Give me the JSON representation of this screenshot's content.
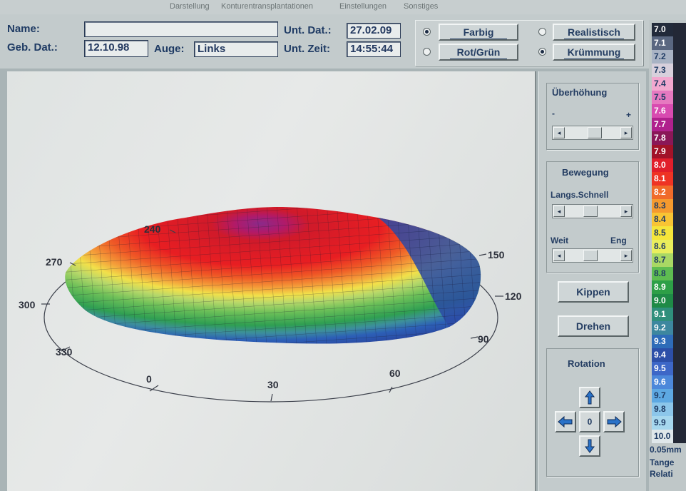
{
  "menu": {
    "items": [
      "Darstellung",
      "Konturentransplantationen",
      "Einstellungen",
      "Sonstiges"
    ]
  },
  "patient": {
    "name_label": "Name:",
    "name_value": "",
    "birth_label": "Geb. Dat.:",
    "birth_value": "12.10.98",
    "eye_label": "Auge:",
    "eye_value": "Links",
    "exam_date_label": "Unt. Dat.:",
    "exam_date_value": "27.02.09",
    "exam_time_label": "Unt. Zeit:",
    "exam_time_value": "14:55:44"
  },
  "options": {
    "farbig": "Farbig",
    "rotgruen": "Rot/Grün",
    "realistisch": "Realistisch",
    "kruemmung": "Krümmung",
    "selected_color_mode": "Farbig",
    "selected_display_mode": "Krümmung"
  },
  "plot": {
    "angle_labels": [
      "0",
      "30",
      "60",
      "90",
      "120",
      "150",
      "240",
      "270",
      "300",
      "330"
    ]
  },
  "controls": {
    "ueberhoehung_title": "Überhöhung",
    "minus": "-",
    "plus": "+",
    "bewegung_title": "Bewegung",
    "langs_schnell": "Langs.Schnell",
    "weit": "Weit",
    "eng": "Eng",
    "kippen": "Kippen",
    "drehen": "Drehen",
    "rotation_title": "Rotation",
    "rotation_center": "0",
    "ueberhoehung_level": 0.55,
    "speed_level": 0.45,
    "distance_level": 0.45
  },
  "legend": {
    "values": [
      "7.0",
      "7.1",
      "7.2",
      "7.3",
      "7.4",
      "7.5",
      "7.6",
      "7.7",
      "7.8",
      "7.9",
      "8.0",
      "8.1",
      "8.2",
      "8.3",
      "8.4",
      "8.5",
      "8.6",
      "8.7",
      "8.8",
      "8.9",
      "9.0",
      "9.1",
      "9.2",
      "9.3",
      "9.4",
      "9.5",
      "9.6",
      "9.7",
      "9.8",
      "9.9",
      "10.0"
    ],
    "colors": [
      "#222a3a",
      "#5a6780",
      "#a9b3c4",
      "#d8d0dc",
      "#f2a8cf",
      "#e679c0",
      "#d84bb0",
      "#b0218d",
      "#8a1757",
      "#a11228",
      "#e11e2b",
      "#ee3324",
      "#f06b2a",
      "#f59a2e",
      "#f8c434",
      "#f5e53a",
      "#e9ee5c",
      "#a9d864",
      "#5ebc51",
      "#2d9f47",
      "#1e8a46",
      "#2f8f7c",
      "#3d879f",
      "#2e6cb8",
      "#2c4fa8",
      "#3d67c7",
      "#4c88da",
      "#5da8e2",
      "#8cc6ea",
      "#a6d7ee",
      "#dfe7ea"
    ],
    "unit": "0.05mm",
    "mode": "Tange",
    "scale": "Relati"
  }
}
